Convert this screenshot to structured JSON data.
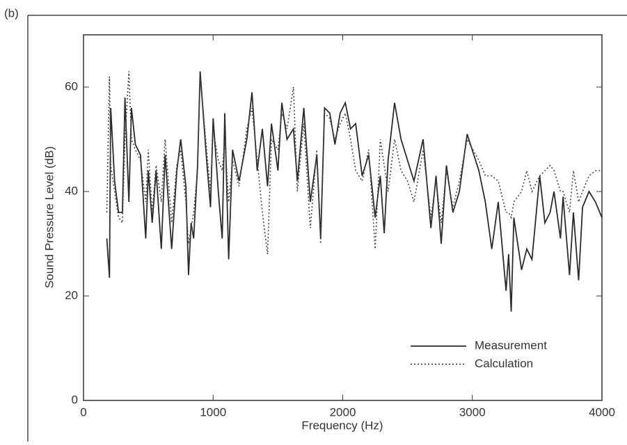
{
  "chart_data": {
    "type": "line",
    "panel_label": "(b)",
    "x_label": "Frequency (Hz)",
    "y_label": "Sound Pressure Level (dB)",
    "xlim": [
      0,
      4000
    ],
    "ylim": [
      0,
      70
    ],
    "xticks": [
      0,
      1000,
      2000,
      3000,
      4000
    ],
    "yticks": [
      0,
      20,
      40,
      60
    ],
    "legend": "lower right",
    "x": [
      180,
      200,
      210,
      240,
      270,
      300,
      320,
      350,
      370,
      400,
      440,
      480,
      500,
      530,
      560,
      600,
      630,
      680,
      720,
      750,
      790,
      810,
      830,
      850,
      880,
      900,
      950,
      980,
      1000,
      1040,
      1070,
      1090,
      1120,
      1150,
      1200,
      1260,
      1300,
      1340,
      1380,
      1420,
      1450,
      1500,
      1530,
      1570,
      1620,
      1650,
      1700,
      1750,
      1800,
      1830,
      1860,
      1900,
      1940,
      1980,
      2020,
      2060,
      2100,
      2150,
      2200,
      2250,
      2290,
      2320,
      2350,
      2400,
      2450,
      2500,
      2550,
      2620,
      2680,
      2720,
      2760,
      2800,
      2850,
      2900,
      2960,
      3050,
      3100,
      3150,
      3200,
      3260,
      3280,
      3300,
      3320,
      3380,
      3420,
      3460,
      3520,
      3560,
      3600,
      3630,
      3680,
      3700,
      3750,
      3780,
      3820,
      3850,
      3900,
      3950,
      4000
    ],
    "series": [
      {
        "name": "Measurement",
        "color": "#2b2b2b",
        "dash": "solid",
        "values": [
          31,
          23.5,
          56,
          42,
          36,
          36,
          58,
          38,
          56,
          49,
          47,
          31,
          44,
          34,
          44,
          29,
          47,
          29,
          44,
          50,
          41,
          24,
          34,
          31,
          45,
          63,
          46,
          37,
          54,
          40,
          31,
          55,
          27,
          48,
          42,
          50,
          59,
          44,
          52,
          41,
          53,
          44,
          57,
          50,
          52,
          42,
          56,
          38,
          47,
          31,
          56,
          55,
          49,
          55,
          57,
          52,
          53,
          43,
          47,
          35,
          43,
          32,
          46,
          57,
          50,
          46,
          42,
          50,
          33,
          43,
          30,
          45,
          36,
          40,
          51,
          44,
          38,
          29,
          38,
          21,
          28,
          17,
          35,
          25,
          29,
          27,
          43,
          34,
          36,
          40,
          31,
          39,
          24,
          36,
          23,
          37,
          40,
          38,
          35
        ]
      },
      {
        "name": "Calculation",
        "color": "#444444",
        "dash": "dotted",
        "values": [
          36,
          62,
          45,
          40,
          35,
          34,
          50,
          63,
          50,
          48,
          46,
          38,
          48,
          36,
          45,
          38,
          50,
          34,
          45,
          48,
          38,
          30,
          33,
          36,
          44,
          62,
          48,
          40,
          52,
          46,
          44,
          50,
          38,
          46,
          41,
          52,
          56,
          46,
          36,
          28,
          50,
          48,
          55,
          52,
          60,
          40,
          53,
          33,
          48,
          30,
          55,
          54,
          50,
          53,
          55,
          50,
          44,
          42,
          48,
          29,
          50,
          45,
          40,
          50,
          44,
          42,
          38,
          48,
          35,
          42,
          34,
          44,
          37,
          42,
          50,
          46,
          43,
          43,
          42,
          36,
          36,
          35,
          38,
          40,
          44,
          40,
          43,
          44,
          45,
          44,
          40,
          40,
          36,
          44,
          38,
          40,
          43,
          44,
          44
        ]
      }
    ]
  }
}
